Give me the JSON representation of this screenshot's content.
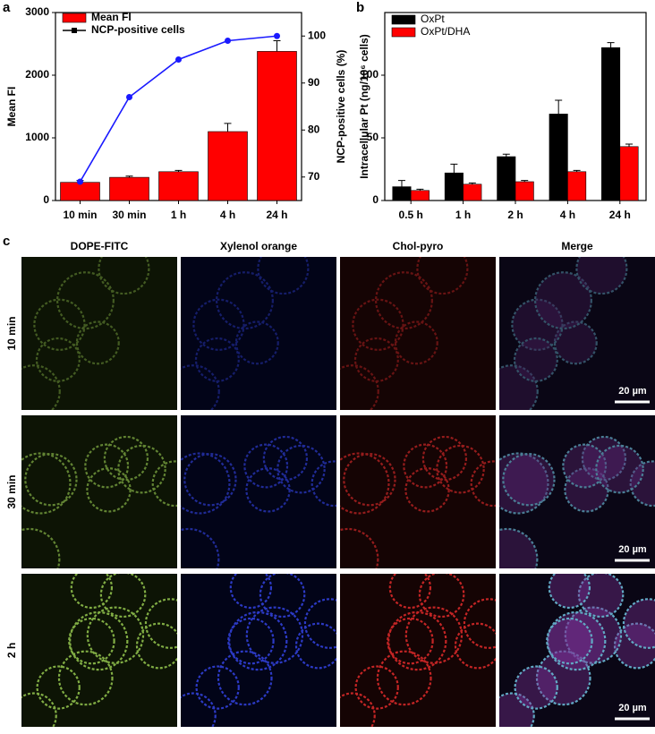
{
  "chart_data": [
    {
      "type": "bar",
      "panel_label": "a",
      "ylabel": "Mean FI",
      "y2label": "NCP-positive cells (%)",
      "categories": [
        "10 min",
        "30 min",
        "1 h",
        "4 h",
        "24 h"
      ],
      "ylim": [
        0,
        3000
      ],
      "yticks": [
        0,
        1000,
        2000,
        3000
      ],
      "y2lim": [
        65,
        105
      ],
      "y2ticks": [
        70,
        80,
        90,
        100
      ],
      "series": [
        {
          "name": "Mean FI",
          "color": "#ff0000",
          "values": [
            290,
            370,
            460,
            1100,
            2380
          ],
          "errors": [
            30,
            20,
            20,
            130,
            170
          ]
        },
        {
          "name": "NCP-positive cells",
          "color": "#1a1aff",
          "type": "line",
          "axis": "y2",
          "values": [
            69,
            87,
            95,
            99,
            100
          ]
        }
      ]
    },
    {
      "type": "bar",
      "panel_label": "b",
      "ylabel": "Intracellular Pt (ng/10⁶ cells)",
      "categories": [
        "0.5 h",
        "1 h",
        "2 h",
        "4 h",
        "24 h"
      ],
      "ylim": [
        0,
        150
      ],
      "yticks": [
        0,
        50,
        100
      ],
      "series": [
        {
          "name": "OxPt",
          "color": "#000000",
          "values": [
            11,
            22,
            35,
            69,
            122
          ],
          "errors": [
            5,
            7,
            2,
            11,
            4
          ]
        },
        {
          "name": "OxPt/DHA",
          "color": "#ff0000",
          "values": [
            8,
            13,
            15,
            23,
            43
          ],
          "errors": [
            1,
            1,
            1,
            1,
            2
          ]
        }
      ]
    }
  ],
  "panel_c": {
    "label": "c",
    "columns": [
      "DOPE-FITC",
      "Xylenol orange",
      "Chol-pyro",
      "Merge"
    ],
    "rows": [
      "10 min",
      "30 min",
      "2 h"
    ],
    "scale_bar": "20 µm"
  }
}
